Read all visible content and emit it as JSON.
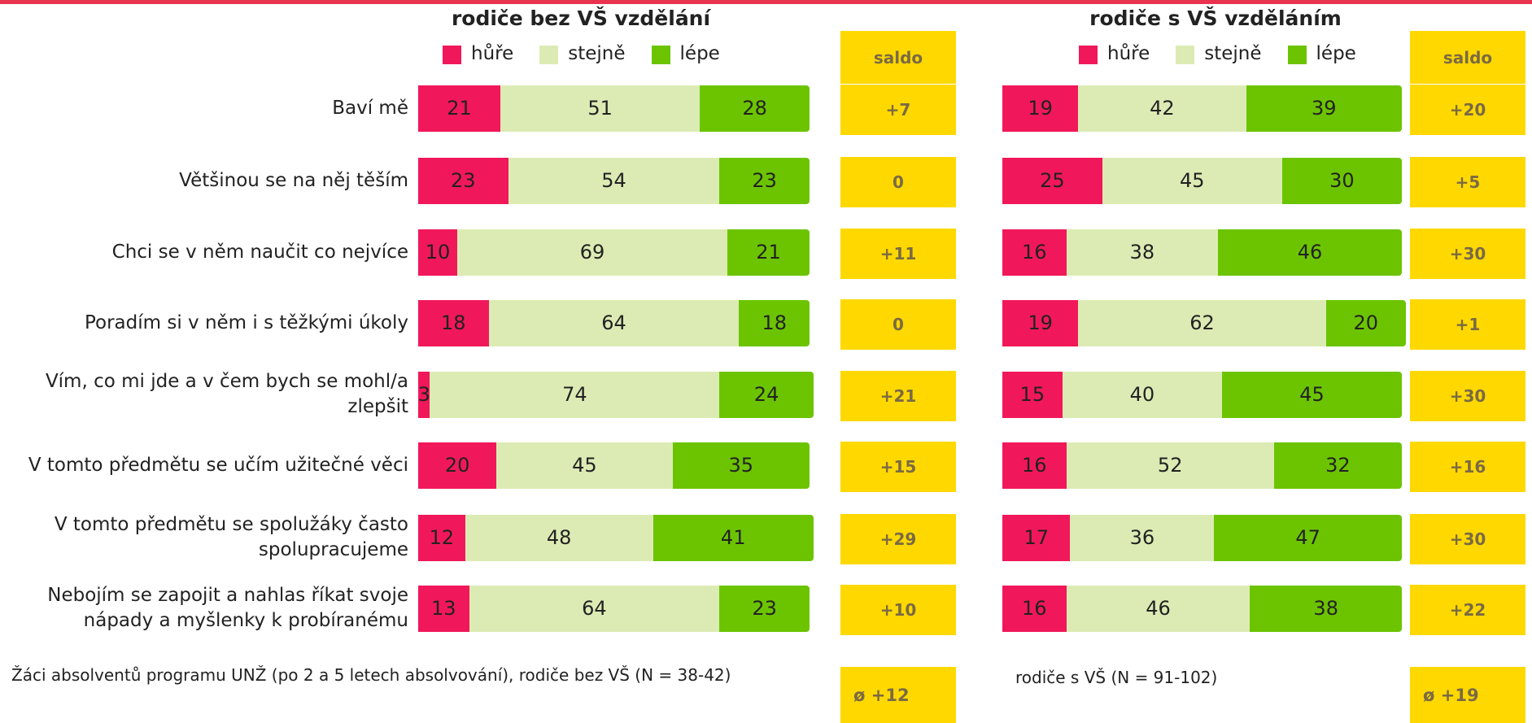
{
  "chart_data": [
    {
      "type": "stacked-bar",
      "title": "rodiče bez VŠ vzdělání",
      "categories": [
        "Baví mě",
        "Většinou se na něj těším",
        "Chci se v něm naučit co nejvíce",
        "Poradím si v něm i s těžkými úkoly",
        "Vím, co mi jde a v čem bych se mohl/a zlepšit",
        "V tomto předmětu se učím užitečné věci",
        "V tomto předmětu se spolužáky často spolupracujeme",
        "Nebojím se zapojit a nahlas říkat svoje nápady a myšlenky k probíranému"
      ],
      "series": [
        {
          "name": "hůře",
          "color": "#f0185a",
          "values": [
            21,
            23,
            10,
            18,
            3,
            20,
            12,
            13
          ]
        },
        {
          "name": "stejně",
          "color": "#dcebb4",
          "values": [
            51,
            54,
            69,
            64,
            74,
            45,
            48,
            64
          ]
        },
        {
          "name": "lépe",
          "color": "#6cc400",
          "values": [
            28,
            23,
            21,
            18,
            24,
            35,
            41,
            23
          ]
        }
      ],
      "xlim": [
        0,
        100
      ],
      "saldo": {
        "title": "saldo",
        "values": [
          7,
          0,
          11,
          0,
          21,
          15,
          29,
          10
        ],
        "value_labels": [
          "+7",
          "0",
          "+11",
          "0",
          "+21",
          "+15",
          "+29",
          "+10"
        ],
        "average_label": "ø +12"
      },
      "note": "Žáci absolventů programu UNŽ (po 2 a 5 letech absolvování), rodiče bez VŠ (N = 38-42)"
    },
    {
      "type": "stacked-bar",
      "title": "rodiče s VŠ vzděláním",
      "series": [
        {
          "name": "hůře",
          "color": "#f0185a",
          "values": [
            19,
            25,
            16,
            19,
            15,
            16,
            17,
            16
          ]
        },
        {
          "name": "stejně",
          "color": "#dcebb4",
          "values": [
            42,
            45,
            38,
            62,
            40,
            52,
            36,
            46
          ]
        },
        {
          "name": "lépe",
          "color": "#6cc400",
          "values": [
            39,
            30,
            46,
            20,
            45,
            32,
            47,
            38
          ]
        }
      ],
      "xlim": [
        0,
        100
      ],
      "saldo": {
        "title": "saldo",
        "values": [
          20,
          5,
          30,
          1,
          30,
          16,
          30,
          22
        ],
        "value_labels": [
          "+20",
          "+5",
          "+30",
          "+1",
          "+30",
          "+16",
          "+30",
          "+22"
        ],
        "average_label": "ø +19"
      },
      "note": "rodiče s VŠ (N = 91-102)"
    }
  ]
}
